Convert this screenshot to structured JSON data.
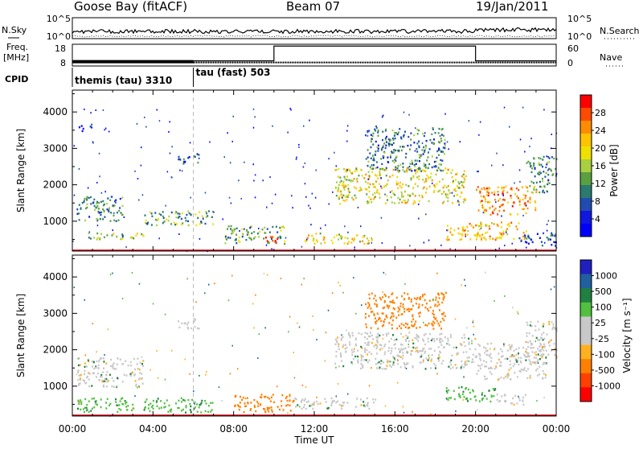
{
  "header": {
    "station": "Goose Bay (fitACF)",
    "beam": "Beam 07",
    "date": "19/Jan/2011"
  },
  "noise_panel": {
    "left_label": "N.Sky",
    "right_label": "N.Search",
    "left_ticks": [
      "10^5",
      "10^0"
    ],
    "right_ticks": [
      "10^5",
      "10^0"
    ]
  },
  "freq_panel": {
    "left_label_line1": "Freq.",
    "left_label_line2": "[MHz]",
    "right_label": "Nave",
    "left_ticks": [
      "18",
      "8"
    ],
    "right_ticks": [
      "60",
      "0"
    ],
    "nave_level": 55,
    "nave_high_start_hours": 10.0,
    "nave_high_end_hours": 20.0,
    "freq_level_mhz": 10.0,
    "freq_thick_end_hours": 6.0
  },
  "cpid": {
    "label": "CPID",
    "segments": [
      {
        "text": "themis (tau) 3310",
        "start": 0
      },
      {
        "text": "tau (fast) 503",
        "start": 6
      }
    ]
  },
  "x_axis": {
    "label": "Time UT",
    "ticks": [
      "00:00",
      "04:00",
      "08:00",
      "12:00",
      "16:00",
      "20:00",
      "00:00"
    ],
    "tick_hours": [
      0,
      4,
      8,
      12,
      16,
      20,
      24
    ]
  },
  "panels": [
    {
      "id": "power",
      "ylabel": "Slant Range [km]",
      "y_ticks": [
        "4000",
        "3000",
        "2000",
        "1000"
      ],
      "y_tick_values": [
        4000,
        3000,
        2000,
        1000
      ],
      "ylim": [
        180,
        4600
      ],
      "cbar_title": "Power [dB]",
      "cbar_labels": [
        "28",
        "24",
        "20",
        "16",
        "12",
        "8",
        "4"
      ],
      "cbar_colors": [
        "#ff0000",
        "#ff4a00",
        "#ff8c00",
        "#ffc400",
        "#f0e000",
        "#a8d040",
        "#5aa040",
        "#2a7a70",
        "#204cb0",
        "#1018e0",
        "#0000ff"
      ]
    },
    {
      "id": "velocity",
      "ylabel": "Slant Range [km]",
      "y_ticks": [
        "4000",
        "3000",
        "2000",
        "1000"
      ],
      "y_tick_values": [
        4000,
        3000,
        2000,
        1000
      ],
      "ylim": [
        180,
        4600
      ],
      "cbar_title": "Velocity [m s⁻¹]",
      "cbar_labels": [
        "1000",
        "500",
        "100",
        "25",
        "-25",
        "-100",
        "-500",
        "-1000"
      ],
      "cbar_colors": [
        "#2020c0",
        "#2060a0",
        "#208040",
        "#50c040",
        "#c8c8c8",
        "#c8c8c8",
        "#ffb020",
        "#ff8000",
        "#ff4000",
        "#ff0000"
      ]
    }
  ],
  "chart_data": {
    "type": "heatmap",
    "title": "Goose Bay (fitACF) Beam 07 19/Jan/2011",
    "xlabel": "Time UT",
    "ylabel": "Slant Range [km]",
    "xlim_hours": [
      0,
      24
    ],
    "ylim_km": [
      180,
      4600
    ],
    "power_blobs": [
      {
        "t0": 0.2,
        "t1": 2.5,
        "r0": 1000,
        "r1": 1700,
        "level": 3
      },
      {
        "t0": 0.5,
        "t1": 3.5,
        "r0": 500,
        "r1": 700,
        "level": 5
      },
      {
        "t0": 3.5,
        "t1": 7.0,
        "r0": 900,
        "r1": 1300,
        "level": 4
      },
      {
        "t0": 5.2,
        "t1": 6.3,
        "r0": 2600,
        "r1": 2900,
        "level": 2
      },
      {
        "t0": 0.3,
        "t1": 1.0,
        "r0": 3500,
        "r1": 3700,
        "level": 1
      },
      {
        "t0": 7.5,
        "t1": 10.5,
        "r0": 400,
        "r1": 900,
        "level": 4
      },
      {
        "t0": 9.5,
        "t1": 10.2,
        "r0": 350,
        "r1": 600,
        "level": 9
      },
      {
        "t0": 11.5,
        "t1": 15.0,
        "r0": 400,
        "r1": 700,
        "level": 6
      },
      {
        "t0": 13.0,
        "t1": 19.5,
        "r0": 1500,
        "r1": 2500,
        "level": 6
      },
      {
        "t0": 14.5,
        "t1": 18.5,
        "r0": 2400,
        "r1": 3600,
        "level": 3
      },
      {
        "t0": 18.5,
        "t1": 22.5,
        "r0": 500,
        "r1": 1000,
        "level": 7
      },
      {
        "t0": 20.0,
        "t1": 23.0,
        "r0": 1200,
        "r1": 2000,
        "level": 8
      },
      {
        "t0": 22.5,
        "t1": 24.0,
        "r0": 1800,
        "r1": 2800,
        "level": 3
      },
      {
        "t0": 22.0,
        "t1": 24.0,
        "r0": 350,
        "r1": 700,
        "level": 2
      }
    ],
    "velocity_blobs": [
      {
        "t0": 0.2,
        "t1": 3.5,
        "r0": 1000,
        "r1": 1800,
        "v": 0
      },
      {
        "t0": 0.2,
        "t1": 3.0,
        "r0": 300,
        "r1": 700,
        "v": 60
      },
      {
        "t0": 3.5,
        "t1": 7.0,
        "r0": 300,
        "r1": 700,
        "v": 60
      },
      {
        "t0": 5.2,
        "t1": 6.3,
        "r0": 2600,
        "r1": 2900,
        "v": 0
      },
      {
        "t0": 8.0,
        "t1": 11.0,
        "r0": 300,
        "r1": 800,
        "v": -150
      },
      {
        "t0": 11.0,
        "t1": 15.0,
        "r0": 400,
        "r1": 700,
        "v": 0
      },
      {
        "t0": 13.0,
        "t1": 20.0,
        "r0": 1500,
        "r1": 2500,
        "v": 0
      },
      {
        "t0": 14.5,
        "t1": 18.5,
        "r0": 2600,
        "r1": 3600,
        "v": -300
      },
      {
        "t0": 18.5,
        "t1": 21.0,
        "r0": 600,
        "r1": 1000,
        "v": 60
      },
      {
        "t0": 20.0,
        "t1": 23.5,
        "r0": 1200,
        "r1": 2200,
        "v": 0
      },
      {
        "t0": 21.0,
        "t1": 22.5,
        "r0": 500,
        "r1": 800,
        "v": 0
      },
      {
        "t0": 22.5,
        "t1": 24.0,
        "r0": 1800,
        "r1": 2800,
        "v": 0
      }
    ]
  }
}
